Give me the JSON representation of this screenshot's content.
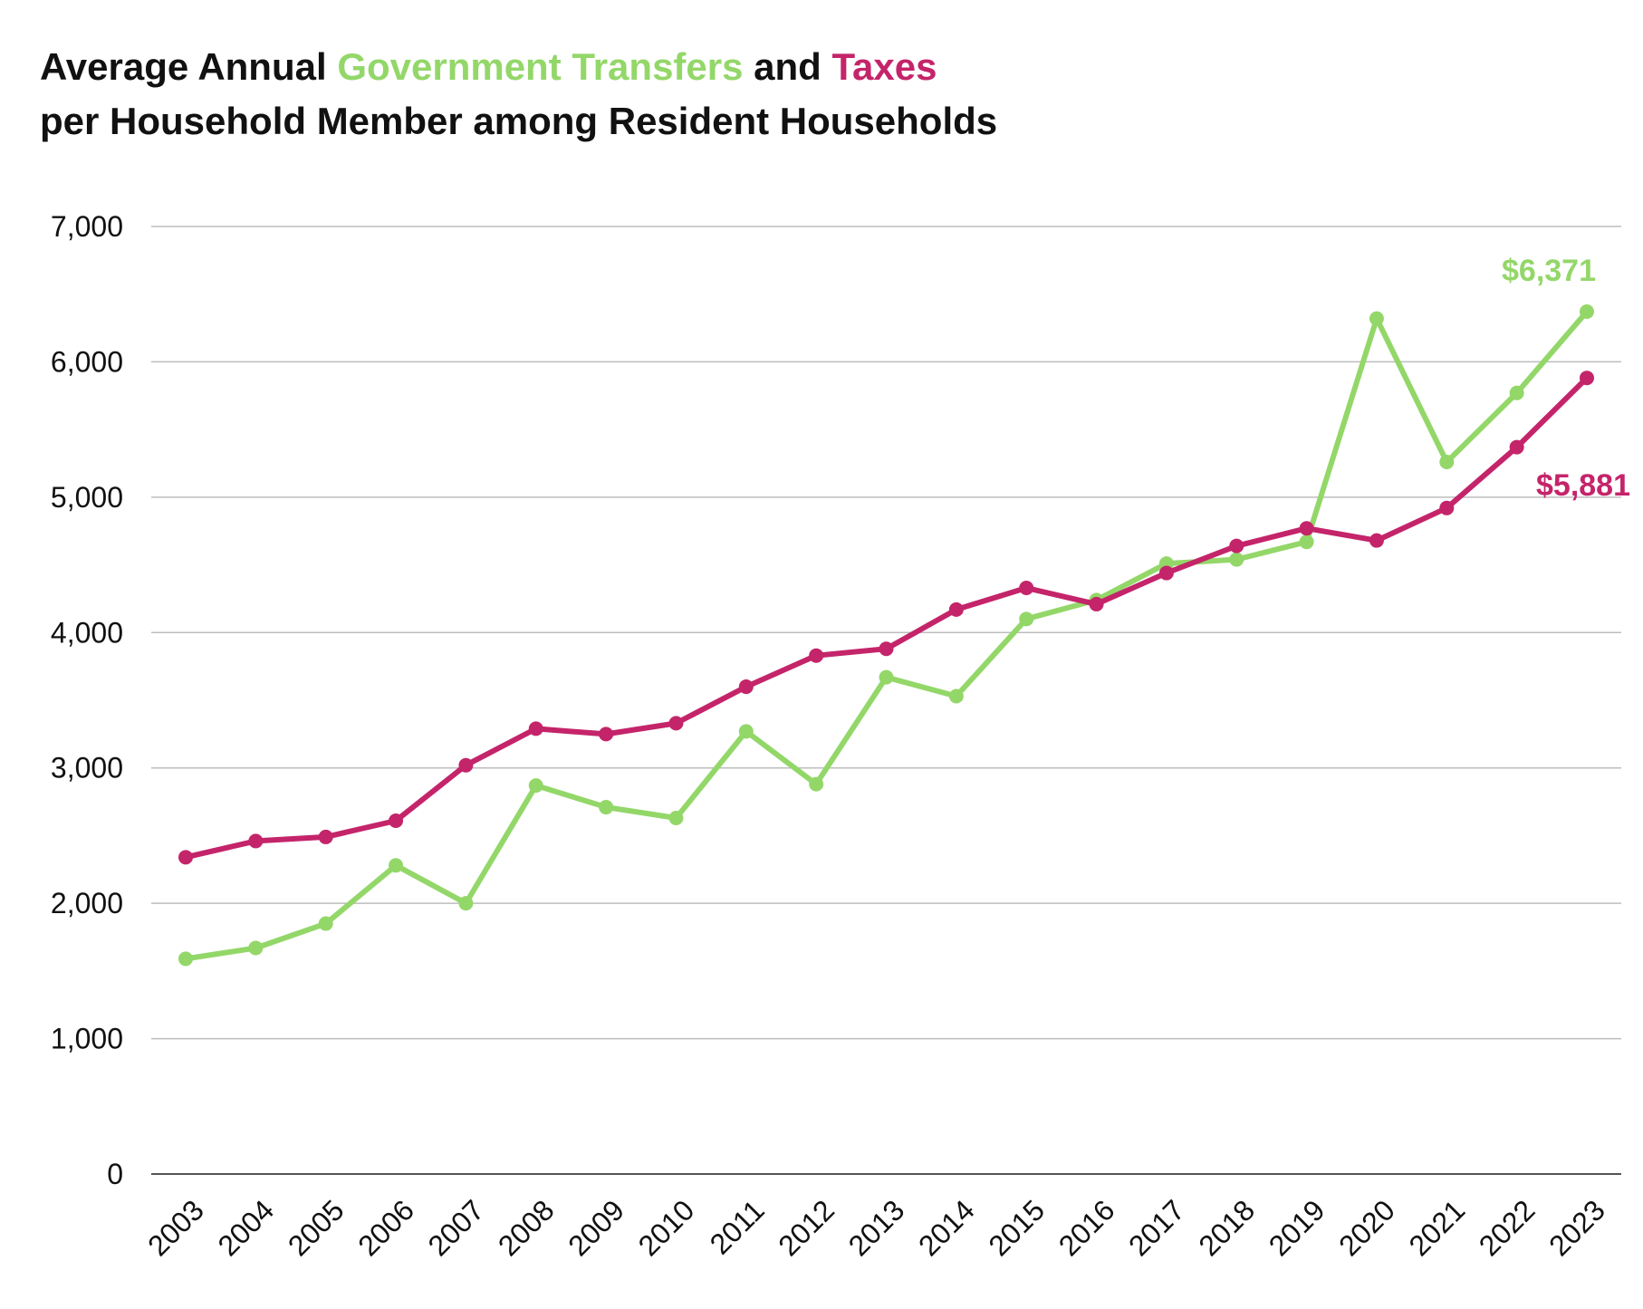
{
  "title": {
    "line1_part1": "Average Annual ",
    "line1_green": "Government Transfers",
    "line1_part2": " and ",
    "line1_magenta": "Taxes",
    "line2": "per Household Member among Resident Households"
  },
  "colors": {
    "transfers": "#93d769",
    "taxes": "#c4246a",
    "grid": "#bdbdbd",
    "axis": "#555555"
  },
  "chart_data": {
    "type": "line",
    "title": "Average Annual Government Transfers and Taxes per Household Member among Resident Households",
    "xlabel": "",
    "ylabel": "",
    "ylim": [
      0,
      7000
    ],
    "yticks": [
      0,
      1000,
      2000,
      3000,
      4000,
      5000,
      6000,
      7000
    ],
    "ytick_labels": [
      "0",
      "1,000",
      "2,000",
      "3,000",
      "4,000",
      "5,000",
      "6,000",
      "7,000"
    ],
    "grid": true,
    "categories": [
      "2003",
      "2004",
      "2005",
      "2006",
      "2007",
      "2008",
      "2009",
      "2010",
      "2011",
      "2012",
      "2013",
      "2014",
      "2015",
      "2016",
      "2017",
      "2018",
      "2019",
      "2020",
      "2021",
      "2022",
      "2023"
    ],
    "series": [
      {
        "name": "Government Transfers",
        "color": "#93d769",
        "values": [
          1590,
          1670,
          1850,
          2280,
          2000,
          2870,
          2710,
          2630,
          3270,
          2880,
          3670,
          3530,
          4100,
          4240,
          4510,
          4540,
          4670,
          6320,
          5260,
          5770,
          6371
        ],
        "end_label": "$6,371"
      },
      {
        "name": "Taxes",
        "color": "#c4246a",
        "values": [
          2340,
          2460,
          2490,
          2610,
          3020,
          3290,
          3250,
          3330,
          3600,
          3830,
          3880,
          4170,
          4330,
          4210,
          4440,
          4640,
          4770,
          4680,
          4920,
          5370,
          5881
        ],
        "end_label": "$5,881"
      }
    ]
  }
}
